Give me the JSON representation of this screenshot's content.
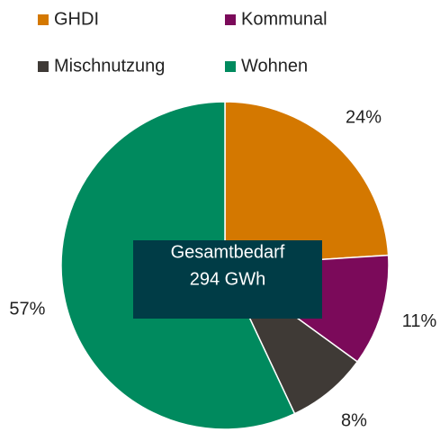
{
  "chart_data": {
    "type": "pie",
    "categories": [
      "GHDI",
      "Kommunal",
      "Mischnutzung",
      "Wohnen"
    ],
    "values": [
      24,
      11,
      8,
      57
    ],
    "value_labels": [
      "24%",
      "11%",
      "8%",
      "57%"
    ],
    "colors": [
      "#d47800",
      "#7b0a5a",
      "#3f3a36",
      "#008a5e"
    ],
    "annotation": [
      "Gesamtbedarf",
      "294 GWh"
    ],
    "legend": "top"
  }
}
